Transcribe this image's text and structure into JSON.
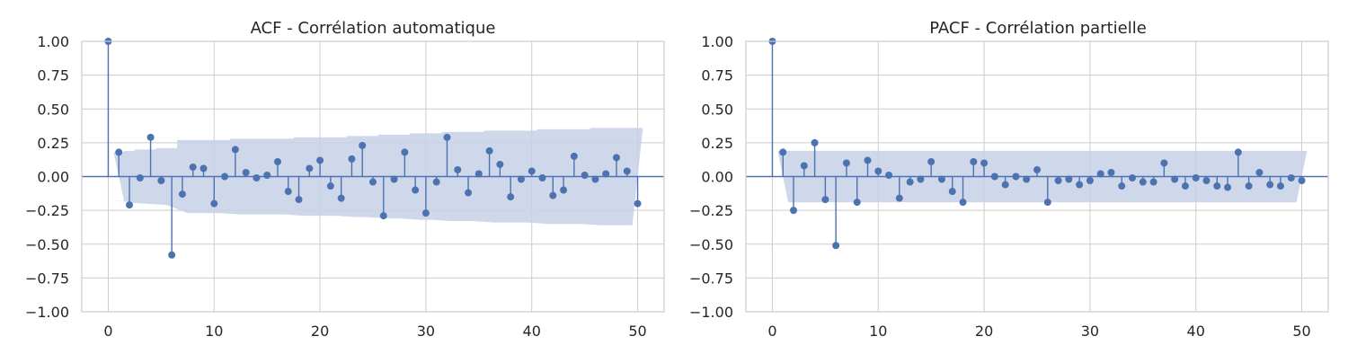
{
  "colors": {
    "stem": "#4c72b0",
    "band": "#c6d1e6",
    "grid": "#cccccc",
    "frame": "#cccccc"
  },
  "chart_data": [
    {
      "type": "stem",
      "title": "ACF - Corrélation automatique",
      "xlim": [
        -2.5,
        52.5
      ],
      "ylim": [
        -1.0,
        1.0
      ],
      "xticks": [
        "0",
        "10",
        "20",
        "30",
        "40",
        "50"
      ],
      "yticks": [
        "1.00",
        "0.75",
        "0.50",
        "0.25",
        "0.00",
        "−0.25",
        "−0.50",
        "−0.75",
        "−1.00"
      ],
      "grid": true,
      "lags": [
        0,
        1,
        2,
        3,
        4,
        5,
        6,
        7,
        8,
        9,
        10,
        11,
        12,
        13,
        14,
        15,
        16,
        17,
        18,
        19,
        20,
        21,
        22,
        23,
        24,
        25,
        26,
        27,
        28,
        29,
        30,
        31,
        32,
        33,
        34,
        35,
        36,
        37,
        38,
        39,
        40,
        41,
        42,
        43,
        44,
        45,
        46,
        47,
        48,
        49,
        50
      ],
      "values": [
        1.0,
        0.18,
        -0.21,
        -0.01,
        0.29,
        -0.03,
        -0.58,
        -0.13,
        0.07,
        0.06,
        -0.2,
        0.0,
        0.2,
        0.03,
        -0.01,
        0.01,
        0.11,
        -0.11,
        -0.17,
        0.06,
        0.12,
        -0.07,
        -0.16,
        0.13,
        0.23,
        -0.04,
        -0.29,
        -0.02,
        0.18,
        -0.1,
        -0.27,
        -0.04,
        0.29,
        0.05,
        -0.12,
        0.02,
        0.19,
        0.09,
        -0.15,
        -0.02,
        0.04,
        -0.01,
        -0.14,
        -0.1,
        0.15,
        0.01,
        -0.02,
        0.02,
        0.14,
        0.04,
        -0.2
      ],
      "confint": [
        0,
        0.18,
        0.19,
        0.2,
        0.2,
        0.21,
        0.21,
        0.27,
        0.27,
        0.27,
        0.27,
        0.27,
        0.28,
        0.28,
        0.28,
        0.28,
        0.28,
        0.28,
        0.29,
        0.29,
        0.29,
        0.29,
        0.29,
        0.3,
        0.3,
        0.3,
        0.31,
        0.31,
        0.31,
        0.32,
        0.32,
        0.32,
        0.33,
        0.33,
        0.33,
        0.33,
        0.34,
        0.34,
        0.34,
        0.34,
        0.34,
        0.35,
        0.35,
        0.35,
        0.35,
        0.35,
        0.36,
        0.36,
        0.36,
        0.36,
        0.36
      ]
    },
    {
      "type": "stem",
      "title": "PACF - Corrélation partielle",
      "xlim": [
        -2.5,
        52.5
      ],
      "ylim": [
        -1.0,
        1.0
      ],
      "xticks": [
        "0",
        "10",
        "20",
        "30",
        "40",
        "50"
      ],
      "yticks": [
        "1.00",
        "0.75",
        "0.50",
        "0.25",
        "0.00",
        "−0.25",
        "−0.50",
        "−0.75",
        "−1.00"
      ],
      "grid": true,
      "lags": [
        0,
        1,
        2,
        3,
        4,
        5,
        6,
        7,
        8,
        9,
        10,
        11,
        12,
        13,
        14,
        15,
        16,
        17,
        18,
        19,
        20,
        21,
        22,
        23,
        24,
        25,
        26,
        27,
        28,
        29,
        30,
        31,
        32,
        33,
        34,
        35,
        36,
        37,
        38,
        39,
        40,
        41,
        42,
        43,
        44,
        45,
        46,
        47,
        48,
        49,
        50
      ],
      "values": [
        1.0,
        0.18,
        -0.25,
        0.08,
        0.25,
        -0.17,
        -0.51,
        0.1,
        -0.19,
        0.12,
        0.04,
        0.01,
        -0.16,
        -0.04,
        -0.02,
        0.11,
        -0.02,
        -0.11,
        -0.19,
        0.11,
        0.1,
        0.0,
        -0.06,
        0.0,
        -0.02,
        0.05,
        -0.19,
        -0.03,
        -0.02,
        -0.06,
        -0.03,
        0.02,
        0.03,
        -0.07,
        -0.01,
        -0.04,
        -0.04,
        0.1,
        -0.02,
        -0.07,
        -0.01,
        -0.03,
        -0.07,
        -0.08,
        0.18,
        -0.07,
        0.03,
        -0.06,
        -0.07,
        -0.01,
        -0.03
      ],
      "confint": [
        0,
        0.19,
        0.19,
        0.19,
        0.19,
        0.19,
        0.19,
        0.19,
        0.19,
        0.19,
        0.19,
        0.19,
        0.19,
        0.19,
        0.19,
        0.19,
        0.19,
        0.19,
        0.19,
        0.19,
        0.19,
        0.19,
        0.19,
        0.19,
        0.19,
        0.19,
        0.19,
        0.19,
        0.19,
        0.19,
        0.19,
        0.19,
        0.19,
        0.19,
        0.19,
        0.19,
        0.19,
        0.19,
        0.19,
        0.19,
        0.19,
        0.19,
        0.19,
        0.19,
        0.19,
        0.19,
        0.19,
        0.19,
        0.19,
        0.19,
        0.19
      ]
    }
  ]
}
